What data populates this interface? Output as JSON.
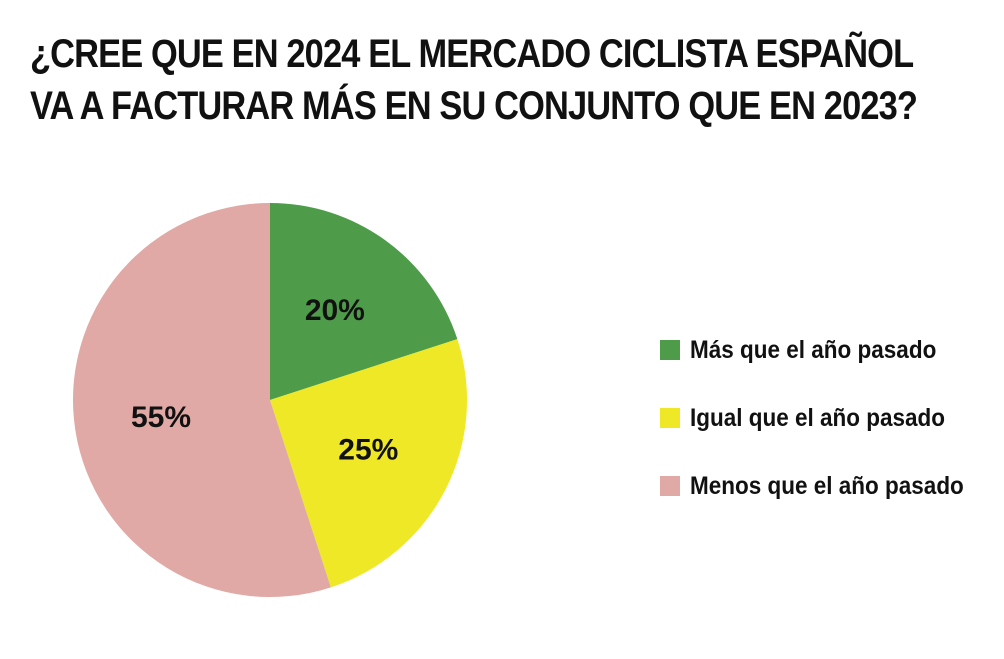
{
  "chart_data": {
    "type": "pie",
    "title_lines": [
      "¿CREE QUE EN 2024 EL MERCADO CICLISTA ESPAÑOL",
      "VA A FACTURAR MÁS EN SU CONJUNTO QUE EN 2023?"
    ],
    "slices": [
      {
        "label": "Más que el año pasado",
        "value": 20,
        "display": "20%",
        "color": "#4e9c49"
      },
      {
        "label": "Igual que el año pasado",
        "value": 25,
        "display": "25%",
        "color": "#efe826"
      },
      {
        "label": "Menos que el año pasado",
        "value": 55,
        "display": "55%",
        "color": "#e1a9a5"
      }
    ],
    "legend_position": "right"
  }
}
